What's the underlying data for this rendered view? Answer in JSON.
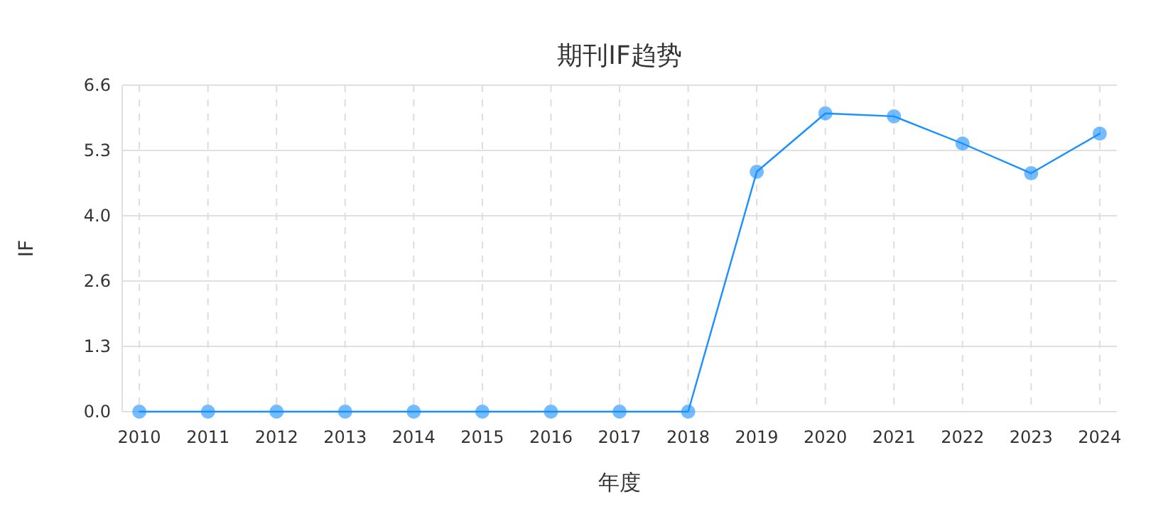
{
  "chart_data": {
    "type": "line",
    "title": "期刊IF趋势",
    "xlabel": "年度",
    "ylabel": "IF",
    "categories": [
      "2010",
      "2011",
      "2012",
      "2013",
      "2014",
      "2015",
      "2016",
      "2017",
      "2018",
      "2019",
      "2020",
      "2021",
      "2022",
      "2023",
      "2024"
    ],
    "series": [
      {
        "color": "#1890ff",
        "values": [
          0,
          0,
          0,
          0,
          0,
          0,
          0,
          0,
          0,
          4.85,
          6.03,
          5.97,
          5.42,
          4.82,
          5.62
        ]
      }
    ],
    "ylim": [
      0,
      6.6
    ],
    "yticks": [
      {
        "value": 0,
        "label": "0.0"
      },
      {
        "value": 1.32,
        "label": "1.3"
      },
      {
        "value": 2.64,
        "label": "2.6"
      },
      {
        "value": 3.96,
        "label": "4.0"
      },
      {
        "value": 5.28,
        "label": "5.3"
      },
      {
        "value": 6.6,
        "label": "6.6"
      }
    ],
    "grid": true,
    "marker": "circle",
    "line_style": "solid"
  }
}
